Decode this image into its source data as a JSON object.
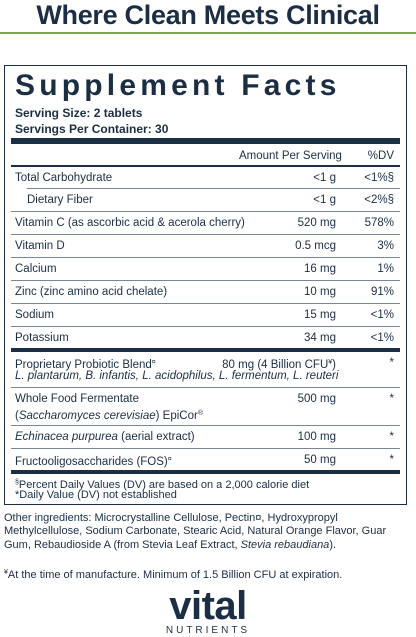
{
  "header": {
    "title": "Where Clean Meets Clinical"
  },
  "facts": {
    "title": "Supplement Facts",
    "serving_size": "Serving Size: 2 tablets",
    "servings_per_container": "Servings Per Container: 30",
    "col_amount": "Amount Per Serving",
    "col_dv": "%DV",
    "rows": [
      {
        "name": "Total Carbohydrate",
        "amount": "<1 g",
        "dv": "<1%§"
      },
      {
        "name": "Dietary Fiber",
        "amount": "<1 g",
        "dv": "<2%§"
      },
      {
        "name": "Vitamin C (as ascorbic acid & acerola cherry)",
        "amount": "520 mg",
        "dv": "578%"
      },
      {
        "name": "Vitamin D",
        "amount": "0.5 mcg",
        "dv": "3%"
      },
      {
        "name": "Calcium",
        "amount": "16 mg",
        "dv": "1%"
      },
      {
        "name": "Zinc (zinc amino acid chelate)",
        "amount": "10 mg",
        "dv": "91%"
      },
      {
        "name": "Sodium",
        "amount": "15 mg",
        "dv": "<1%"
      },
      {
        "name": "Potassium",
        "amount": "34 mg",
        "dv": "<1%"
      }
    ],
    "probiotic": {
      "name": "Proprietary Probiotic Blend",
      "mark": "¤",
      "amount": "80 mg (4 Billion CFU",
      "amount_mark": "¥",
      "amount_close": ")",
      "dv": "*",
      "strains": "L. plantarum, B. infantis, L. acidophilus, L. fermentum, L. reuteri"
    },
    "ferment": {
      "line1": "Whole Food Fermentate",
      "species": "Saccharomyces cerevisiae",
      "brand": " EpiCor",
      "reg": "®",
      "amount": "500 mg",
      "dv": "*"
    },
    "echinacea": {
      "species": "Echinacea purpurea",
      "rest": " (aerial extract)",
      "amount": "100 mg",
      "dv": "*"
    },
    "fos": {
      "name": "Fructooligosaccharides (FOS)",
      "mark": "¤",
      "amount": "50 mg",
      "dv": "*"
    },
    "footnote1_mark": "§",
    "footnote1": "Percent Daily Values (DV) are based on a 2,000 calorie diet",
    "footnote2": "*Daily Value (DV) not established"
  },
  "other_ingredients": {
    "text": "Other ingredients: Microcrystalline Cellulose, Pectin¤, Hydroxypropyl Methylcellulose, Sodium Carbonate, Stearic Acid, Natural Orange Flavor, Guar Gum, Rebaudioside A (from Stevia Leaf Extract, ",
    "italic": "Stevia rebaudiana",
    "end": ")."
  },
  "manufacture_note": {
    "mark": "¥",
    "text": "At the time of manufacture. Minimum of 1.5 Billion CFU at expiration."
  },
  "brand": {
    "name": "vital",
    "sub": "NUTRIENTS"
  },
  "colors": {
    "navy": "#1c2e44",
    "green": "#7aa64a"
  }
}
